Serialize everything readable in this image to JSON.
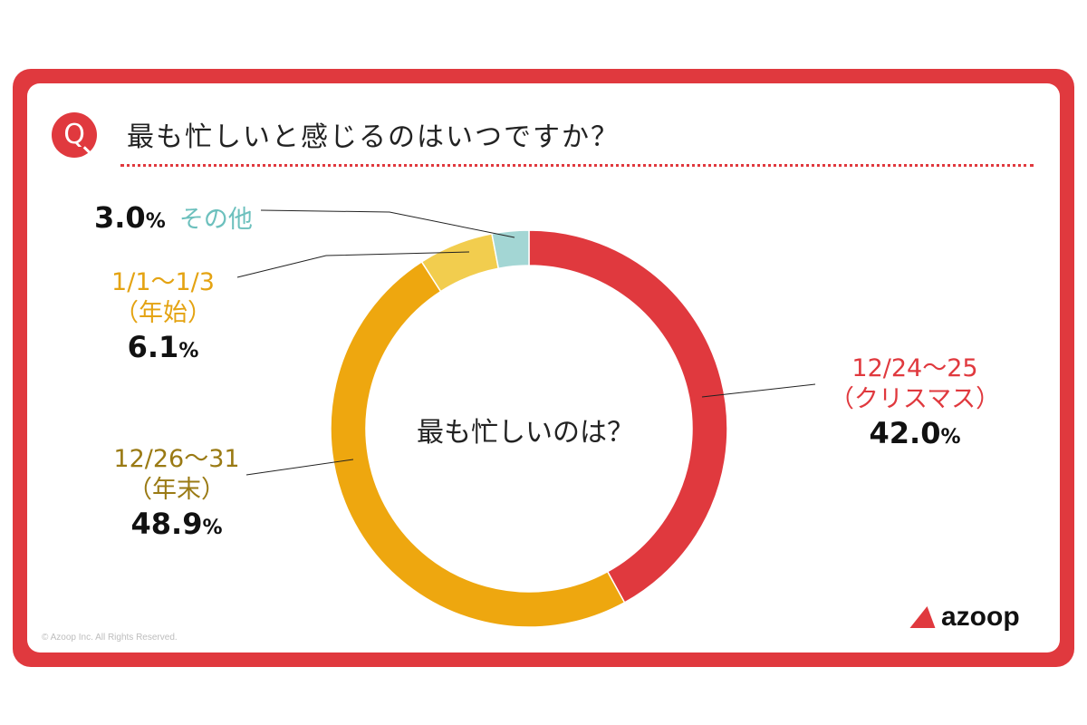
{
  "question": {
    "badge": "Q",
    "text": "最も忙しいと感じるのはいつですか？"
  },
  "center_label": "最も忙しいのは？",
  "brand": "azoop",
  "copyright": "© Azoop Inc. All Rights Reserved.",
  "colors": {
    "frame": "#e0393e",
    "christmas": "#e0393e",
    "year_end": "#eea70f",
    "new_year": "#f2cd4e",
    "other": "#a3d6d4"
  },
  "chart_data": {
    "type": "pie",
    "donut": true,
    "slices": [
      {
        "label": "12/24〜25",
        "sublabel": "（クリスマス）",
        "value": 42.0,
        "pct_text": "42.0",
        "color": "#e0393e"
      },
      {
        "label": "12/26〜31",
        "sublabel": "（年末）",
        "value": 48.9,
        "pct_text": "48.9",
        "color": "#eea70f"
      },
      {
        "label": "1/1〜1/3",
        "sublabel": "（年始）",
        "value": 6.1,
        "pct_text": "6.1",
        "color": "#f2cd4e"
      },
      {
        "label": "その他",
        "sublabel": "",
        "value": 3.0,
        "pct_text": "3.0",
        "color": "#a3d6d4"
      }
    ],
    "unit": "%"
  }
}
